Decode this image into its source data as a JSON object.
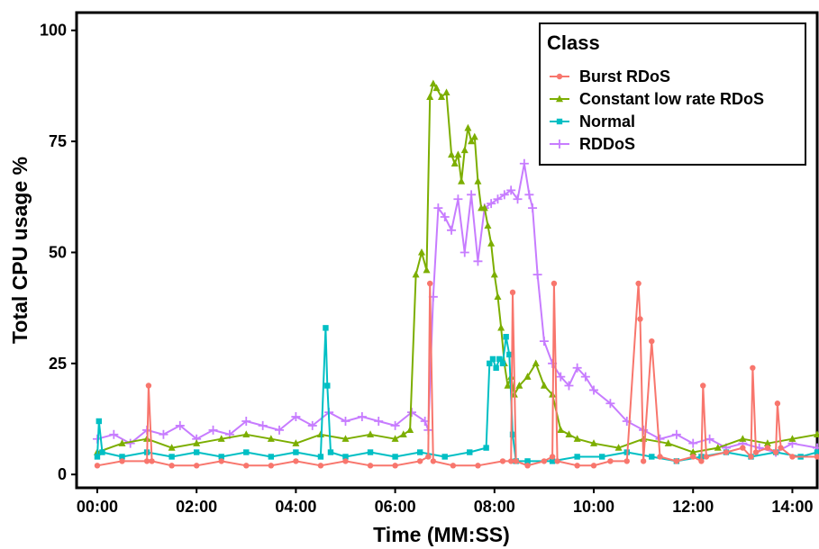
{
  "chart_data": {
    "type": "line",
    "title": "",
    "xlabel": "Time (MM:SS)",
    "ylabel": "Total CPU usage %",
    "xlim": [
      -25,
      870
    ],
    "ylim": [
      -3,
      104
    ],
    "x_ticks": [
      0,
      120,
      240,
      360,
      480,
      600,
      720,
      840
    ],
    "x_tick_labels": [
      "00:00",
      "02:00",
      "04:00",
      "06:00",
      "08:00",
      "10:00",
      "12:00",
      "14:00"
    ],
    "y_ticks": [
      0,
      25,
      50,
      75,
      100
    ],
    "y_tick_labels": [
      "0",
      "25",
      "50",
      "75",
      "100"
    ],
    "grid": false,
    "legend": {
      "title": "Class",
      "position": "top-right"
    },
    "series": [
      {
        "name": "Burst RDoS",
        "color": "#F8766D",
        "marker": "circle",
        "x": [
          0,
          30,
          60,
          62,
          66,
          90,
          120,
          150,
          180,
          210,
          240,
          270,
          300,
          330,
          360,
          390,
          400,
          402,
          406,
          430,
          460,
          490,
          500,
          502,
          506,
          520,
          540,
          550,
          552,
          556,
          580,
          600,
          620,
          640,
          654,
          656,
          660,
          670,
          680,
          700,
          720,
          730,
          732,
          736,
          760,
          780,
          790,
          792,
          796,
          810,
          820,
          822,
          826,
          840,
          870
        ],
        "y": [
          2,
          3,
          3,
          20,
          3,
          2,
          2,
          3,
          2,
          2,
          3,
          2,
          3,
          2,
          2,
          3,
          4,
          43,
          3,
          2,
          2,
          3,
          3,
          41,
          3,
          2,
          3,
          4,
          43,
          3,
          2,
          2,
          3,
          3,
          43,
          35,
          3,
          30,
          4,
          3,
          4,
          3,
          20,
          4,
          5,
          6,
          4,
          24,
          5,
          6,
          5,
          16,
          6,
          4,
          4
        ]
      },
      {
        "name": "Constant low rate RDoS",
        "color": "#7CAE00",
        "marker": "triangle",
        "x": [
          0,
          30,
          60,
          90,
          120,
          150,
          180,
          210,
          240,
          270,
          300,
          330,
          360,
          370,
          378,
          385,
          392,
          398,
          402,
          406,
          410,
          416,
          422,
          428,
          432,
          436,
          440,
          444,
          448,
          452,
          456,
          460,
          464,
          468,
          472,
          476,
          480,
          484,
          488,
          492,
          496,
          500,
          504,
          510,
          520,
          530,
          540,
          550,
          560,
          570,
          580,
          600,
          630,
          660,
          690,
          720,
          750,
          780,
          810,
          840,
          870
        ],
        "y": [
          5,
          7,
          8,
          6,
          7,
          8,
          9,
          8,
          7,
          9,
          8,
          9,
          8,
          9,
          10,
          45,
          50,
          46,
          85,
          88,
          87,
          85,
          86,
          72,
          70,
          72,
          66,
          73,
          78,
          75,
          76,
          66,
          60,
          60,
          56,
          52,
          45,
          40,
          33,
          25,
          20,
          22,
          18,
          20,
          22,
          25,
          20,
          18,
          10,
          9,
          8,
          7,
          6,
          8,
          7,
          5,
          6,
          8,
          7,
          8,
          9
        ]
      },
      {
        "name": "Normal",
        "color": "#00BFC4",
        "marker": "square",
        "x": [
          0,
          2,
          6,
          30,
          60,
          90,
          120,
          150,
          180,
          210,
          240,
          270,
          276,
          278,
          282,
          300,
          330,
          360,
          390,
          420,
          450,
          470,
          474,
          478,
          482,
          486,
          490,
          494,
          498,
          502,
          506,
          520,
          550,
          580,
          610,
          640,
          670,
          700,
          730,
          760,
          790,
          820,
          850,
          870
        ],
        "y": [
          4,
          12,
          5,
          4,
          5,
          4,
          5,
          4,
          5,
          4,
          5,
          4,
          33,
          20,
          5,
          4,
          5,
          4,
          5,
          4,
          5,
          6,
          25,
          26,
          24,
          26,
          25,
          31,
          27,
          9,
          3,
          3,
          3,
          4,
          4,
          5,
          4,
          3,
          4,
          5,
          4,
          5,
          4,
          5
        ]
      },
      {
        "name": "RDDoS",
        "color": "#C77CFF",
        "marker": "plus",
        "x": [
          0,
          20,
          40,
          60,
          80,
          100,
          120,
          140,
          160,
          180,
          200,
          220,
          240,
          260,
          280,
          300,
          320,
          340,
          360,
          380,
          396,
          400,
          406,
          412,
          420,
          428,
          436,
          444,
          452,
          460,
          468,
          476,
          484,
          492,
          500,
          508,
          516,
          522,
          526,
          532,
          540,
          550,
          560,
          570,
          580,
          590,
          600,
          620,
          640,
          660,
          680,
          700,
          720,
          740,
          760,
          780,
          800,
          820,
          840,
          870
        ],
        "y": [
          8,
          9,
          7,
          10,
          9,
          11,
          8,
          10,
          9,
          12,
          11,
          10,
          13,
          11,
          14,
          12,
          13,
          12,
          11,
          14,
          12,
          10,
          40,
          60,
          58,
          55,
          62,
          50,
          63,
          48,
          60,
          61,
          62,
          63,
          64,
          62,
          70,
          63,
          60,
          45,
          30,
          25,
          22,
          20,
          24,
          22,
          19,
          16,
          12,
          10,
          8,
          9,
          7,
          8,
          6,
          7,
          6,
          5,
          7,
          6
        ]
      }
    ]
  }
}
